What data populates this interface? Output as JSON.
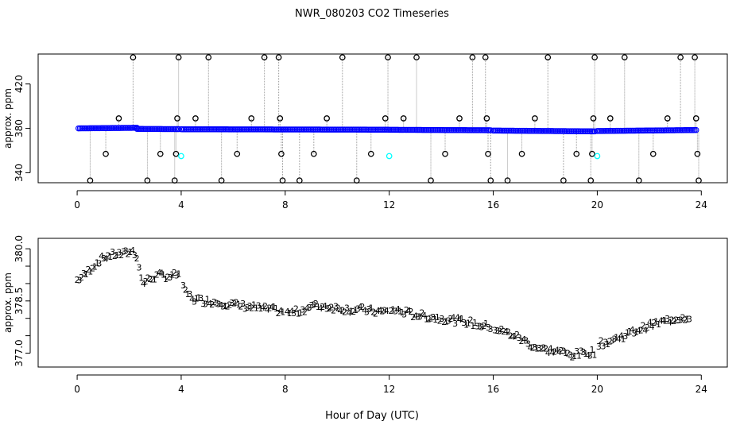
{
  "figure": {
    "title": "NWR_080203  CO2 Timeseries",
    "xlabel": "Hour of Day (UTC)"
  },
  "chart_data": [
    {
      "type": "scatter",
      "ylabel": "approx. ppm",
      "xlim": [
        -1.5,
        25
      ],
      "ylim": [
        331,
        447
      ],
      "xticks": [
        0,
        4,
        8,
        12,
        16,
        20,
        24
      ],
      "yticks": [
        340,
        380,
        420
      ],
      "grid": false,
      "series": [
        {
          "color": "#0000ff",
          "marker": "circle",
          "baseline_segments": [
            {
              "x": [
                0.05,
                2.3
              ],
              "y": [
                380,
                380.5
              ]
            },
            {
              "x": [
                2.3,
                3.9
              ],
              "y": [
                379.5,
                379.3
              ]
            },
            {
              "x": [
                4.0,
                7.95
              ],
              "y": [
                379.2,
                379.0
              ]
            },
            {
              "x": [
                8.0,
                11.95
              ],
              "y": [
                379.0,
                378.8
              ]
            },
            {
              "x": [
                12.0,
                15.9
              ],
              "y": [
                378.7,
                378.3
              ]
            },
            {
              "x": [
                16.0,
                19.9
              ],
              "y": [
                378.0,
                377.3
              ]
            },
            {
              "x": [
                20.0,
                23.8
              ],
              "y": [
                377.6,
                378.5
              ]
            }
          ]
        },
        {
          "color": "#000000",
          "marker": "circle-outliers",
          "points": [
            [
              0.5,
              333
            ],
            [
              1.1,
              357
            ],
            [
              1.6,
              389
            ],
            [
              2.15,
              444
            ],
            [
              2.7,
              333
            ],
            [
              3.2,
              357
            ],
            [
              3.75,
              333
            ],
            [
              3.8,
              357
            ],
            [
              3.85,
              389
            ],
            [
              3.9,
              444
            ],
            [
              4.55,
              389
            ],
            [
              5.05,
              444
            ],
            [
              5.55,
              333
            ],
            [
              6.15,
              357
            ],
            [
              6.7,
              389
            ],
            [
              7.2,
              444
            ],
            [
              7.75,
              444
            ],
            [
              7.8,
              389
            ],
            [
              7.85,
              357
            ],
            [
              7.9,
              333
            ],
            [
              8.55,
              333
            ],
            [
              9.1,
              357
            ],
            [
              9.6,
              389
            ],
            [
              10.2,
              444
            ],
            [
              10.75,
              333
            ],
            [
              11.3,
              357
            ],
            [
              11.85,
              389
            ],
            [
              11.95,
              444
            ],
            [
              12.55,
              389
            ],
            [
              13.05,
              444
            ],
            [
              13.6,
              333
            ],
            [
              14.15,
              357
            ],
            [
              14.7,
              389
            ],
            [
              15.2,
              444
            ],
            [
              15.7,
              444
            ],
            [
              15.75,
              389
            ],
            [
              15.8,
              357
            ],
            [
              15.9,
              333
            ],
            [
              16.55,
              333
            ],
            [
              17.1,
              357
            ],
            [
              17.6,
              389
            ],
            [
              18.1,
              444
            ],
            [
              18.7,
              333
            ],
            [
              19.2,
              357
            ],
            [
              19.75,
              333
            ],
            [
              19.8,
              357
            ],
            [
              19.85,
              389
            ],
            [
              19.9,
              444
            ],
            [
              20.5,
              389
            ],
            [
              21.05,
              444
            ],
            [
              21.6,
              333
            ],
            [
              22.15,
              357
            ],
            [
              22.7,
              389
            ],
            [
              23.2,
              444
            ],
            [
              23.75,
              444
            ],
            [
              23.8,
              389
            ],
            [
              23.85,
              357
            ],
            [
              23.9,
              333
            ]
          ]
        },
        {
          "color": "#00ffff",
          "marker": "circle",
          "points": [
            [
              4.0,
              355
            ],
            [
              12.0,
              355
            ],
            [
              20.0,
              355
            ]
          ]
        }
      ]
    },
    {
      "type": "scatter",
      "ylabel": "approx. ppm",
      "xlim": [
        -1.5,
        25
      ],
      "ylim": [
        376.6,
        380.3
      ],
      "xticks": [
        0,
        4,
        8,
        12,
        16,
        20,
        24
      ],
      "yticks": [
        377.0,
        377.5,
        378.0,
        378.5,
        379.0,
        379.5,
        380.0
      ],
      "ytick_labels": [
        "377.0",
        "",
        "",
        "378.5",
        "",
        "",
        "380.0"
      ],
      "grid": false,
      "series": [
        {
          "marker": "digits 1-4",
          "colors": {
            "1": "#cc0000",
            "2": "#00aa00",
            "3": "#0000ff",
            "4": "#cc0000"
          },
          "trend": [
            [
              0.0,
              379.1
            ],
            [
              0.3,
              379.25
            ],
            [
              0.6,
              379.5
            ],
            [
              0.9,
              379.7
            ],
            [
              1.2,
              379.8
            ],
            [
              1.5,
              379.85
            ],
            [
              1.8,
              379.85
            ],
            [
              2.1,
              379.95
            ],
            [
              2.3,
              379.8
            ],
            [
              2.5,
              379.0
            ],
            [
              2.8,
              379.15
            ],
            [
              3.2,
              379.25
            ],
            [
              3.6,
              379.2
            ],
            [
              3.95,
              379.3
            ],
            [
              4.1,
              378.8
            ],
            [
              4.5,
              378.55
            ],
            [
              5.0,
              378.5
            ],
            [
              5.5,
              378.45
            ],
            [
              6.0,
              378.4
            ],
            [
              6.5,
              378.35
            ],
            [
              7.0,
              378.3
            ],
            [
              7.5,
              378.25
            ],
            [
              7.95,
              378.2
            ],
            [
              8.05,
              378.15
            ],
            [
              8.5,
              378.2
            ],
            [
              9.0,
              378.35
            ],
            [
              9.5,
              378.35
            ],
            [
              10.0,
              378.3
            ],
            [
              10.5,
              378.25
            ],
            [
              11.0,
              378.25
            ],
            [
              11.5,
              378.2
            ],
            [
              11.95,
              378.2
            ],
            [
              12.05,
              378.25
            ],
            [
              12.5,
              378.2
            ],
            [
              13.0,
              378.1
            ],
            [
              13.5,
              378.05
            ],
            [
              14.0,
              378.0
            ],
            [
              14.5,
              377.95
            ],
            [
              15.0,
              377.9
            ],
            [
              15.5,
              377.8
            ],
            [
              15.95,
              377.75
            ],
            [
              16.05,
              377.7
            ],
            [
              16.5,
              377.6
            ],
            [
              17.0,
              377.45
            ],
            [
              17.5,
              377.2
            ],
            [
              18.0,
              377.1
            ],
            [
              18.5,
              377.05
            ],
            [
              19.0,
              376.95
            ],
            [
              19.5,
              377.0
            ],
            [
              19.95,
              377.05
            ],
            [
              20.05,
              377.25
            ],
            [
              20.5,
              377.35
            ],
            [
              21.0,
              377.5
            ],
            [
              21.5,
              377.65
            ],
            [
              22.0,
              377.8
            ],
            [
              22.5,
              377.9
            ],
            [
              23.0,
              378.0
            ],
            [
              23.6,
              378.05
            ]
          ]
        }
      ]
    }
  ]
}
